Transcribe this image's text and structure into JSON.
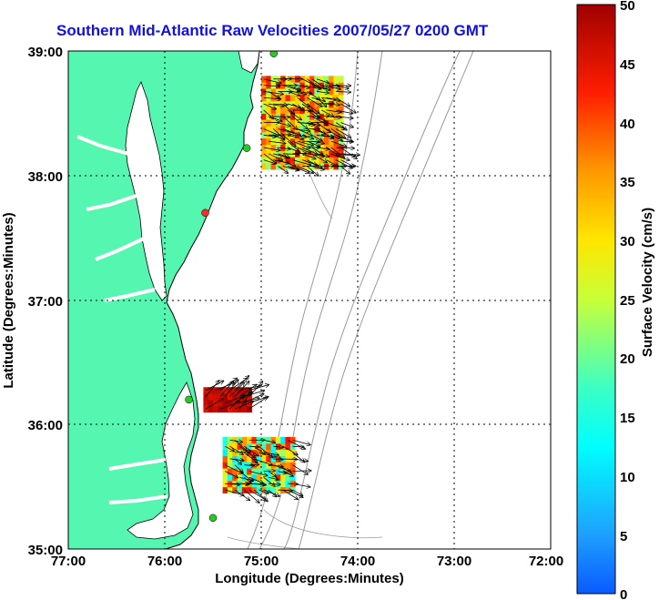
{
  "title": "Southern Mid-Atlantic Raw Velocities 2007/05/27 0200 GMT",
  "x_axis": {
    "label": "Longitude (Degrees:Minutes)",
    "ticks": [
      "77:00",
      "76:00",
      "75:00",
      "74:00",
      "73:00",
      "72:00"
    ]
  },
  "y_axis": {
    "label": "Latitude (Degrees:Minutes)",
    "ticks": [
      "39:00",
      "38:00",
      "37:00",
      "36:00",
      "35:00"
    ]
  },
  "colorbar": {
    "label": "Surface Velocity (cm/s)",
    "ticks": [
      "50",
      "45",
      "40",
      "35",
      "30",
      "25",
      "20",
      "15",
      "10",
      "5",
      "0"
    ],
    "min": 0,
    "max": 50
  },
  "colors": {
    "title": "#1010e6",
    "land": "#55f7b0",
    "coast": "#000000",
    "bathymetry": "#9a9a9a",
    "grid": "#000000"
  },
  "map_extent": {
    "lon_min": -77,
    "lon_max": -72,
    "lat_min": 35,
    "lat_max": 39
  },
  "radar_regions": [
    {
      "id": "north",
      "lon_range": [
        -75.0,
        -74.15
      ],
      "lat_range": [
        38.05,
        38.8
      ],
      "speed_range": [
        20,
        45
      ]
    },
    {
      "id": "cape-hatteras-north",
      "lon_range": [
        -75.6,
        -75.1
      ],
      "lat_range": [
        36.1,
        36.3
      ],
      "speed_range": [
        45,
        50
      ]
    },
    {
      "id": "south",
      "lon_range": [
        -75.4,
        -74.65
      ],
      "lat_range": [
        35.45,
        35.9
      ],
      "speed_range": [
        10,
        45
      ]
    }
  ],
  "stations": [
    {
      "lon": -74.87,
      "lat": 38.98,
      "color": "#22cc22"
    },
    {
      "lon": -75.15,
      "lat": 38.22,
      "color": "#22cc22"
    },
    {
      "lon": -75.58,
      "lat": 37.7,
      "color": "#e83030"
    },
    {
      "lon": -75.75,
      "lat": 36.2,
      "color": "#22cc22"
    },
    {
      "lon": -75.5,
      "lat": 35.25,
      "color": "#22cc22"
    }
  ]
}
